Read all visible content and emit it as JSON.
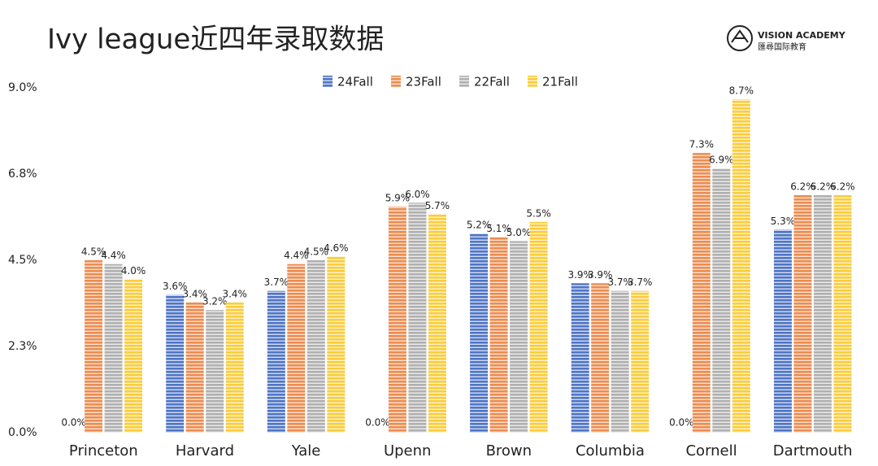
{
  "chart_data": {
    "type": "bar",
    "title": "Ivy league近四年录取数据",
    "logo": {
      "name": "VISION ACADEMY",
      "subtitle": "匯尋国际教育"
    },
    "categories": [
      "Princeton",
      "Harvard",
      "Yale",
      "Upenn",
      "Brown",
      "Columbia",
      "Cornell",
      "Dartmouth"
    ],
    "series": [
      {
        "name": "24Fall",
        "color": "#4f75c6",
        "values": [
          0.0,
          3.6,
          3.7,
          0.0,
          5.2,
          3.9,
          0.0,
          5.3
        ],
        "value_labels": [
          "0.0%",
          "3.6%",
          "3.7%",
          "0.0%",
          "5.2%",
          "3.9%",
          "0.0%",
          "5.3%"
        ]
      },
      {
        "name": "23Fall",
        "color": "#ed8c4f",
        "values": [
          4.5,
          3.4,
          4.4,
          5.9,
          5.1,
          3.9,
          7.3,
          6.2
        ],
        "value_labels": [
          "4.5%",
          "3.4%",
          "4.4%",
          "5.9%",
          "5.1%",
          "3.9%",
          "7.3%",
          "6.2%"
        ]
      },
      {
        "name": "22Fall",
        "color": "#b0b0b0",
        "values": [
          4.4,
          3.2,
          4.5,
          6.0,
          5.0,
          3.7,
          6.9,
          6.2
        ],
        "value_labels": [
          "4.4%",
          "3.2%",
          "4.5%",
          "6.0%",
          "5.0%",
          "3.7%",
          "6.9%",
          "6.2%"
        ]
      },
      {
        "name": "21Fall",
        "color": "#fbcc3b",
        "values": [
          4.0,
          3.4,
          4.6,
          5.7,
          5.5,
          3.7,
          8.7,
          6.2
        ],
        "value_labels": [
          "4.0%",
          "3.4%",
          "4.6%",
          "5.7%",
          "5.5%",
          "3.7%",
          "8.7%",
          "6.2%"
        ]
      }
    ],
    "ylim": [
      0,
      9
    ],
    "yticks": [
      {
        "value": 0,
        "label": "0.0%"
      },
      {
        "value": 2.25,
        "label": "2.3%"
      },
      {
        "value": 4.5,
        "label": "4.5%"
      },
      {
        "value": 6.75,
        "label": "6.8%"
      },
      {
        "value": 9,
        "label": "9.0%"
      }
    ],
    "grid": false
  }
}
